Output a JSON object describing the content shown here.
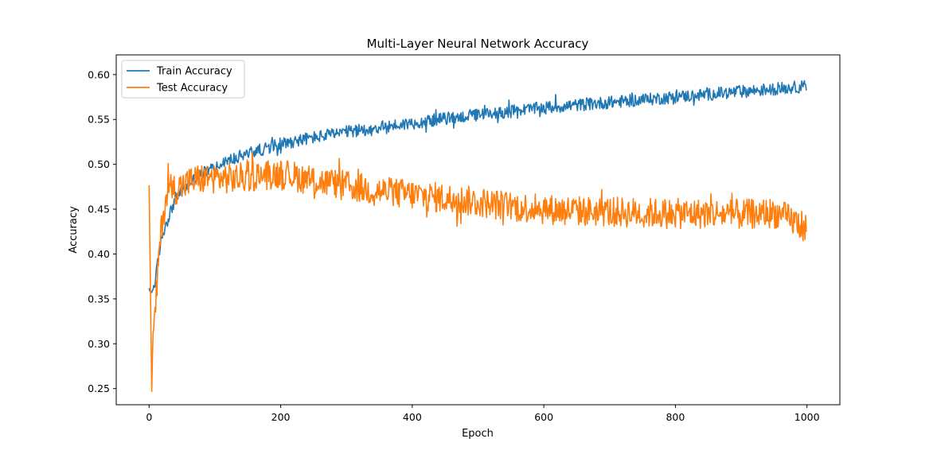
{
  "chart_data": {
    "type": "line",
    "title": "Multi-Layer Neural Network Accuracy",
    "xlabel": "Epoch",
    "ylabel": "Accuracy",
    "xlim": [
      -50,
      1050
    ],
    "ylim": [
      0.232,
      0.622
    ],
    "x_ticks": [
      0,
      200,
      400,
      600,
      800,
      1000
    ],
    "y_ticks": [
      0.25,
      0.3,
      0.35,
      0.4,
      0.45,
      0.5,
      0.55,
      0.6
    ],
    "legend_position": "top-left",
    "grid": false,
    "x_range": [
      0,
      999
    ],
    "series": [
      {
        "name": "Train Accuracy",
        "color": "#1f77b4",
        "points": [
          [
            0,
            0.362
          ],
          [
            3,
            0.355
          ],
          [
            6,
            0.362
          ],
          [
            10,
            0.372
          ],
          [
            13,
            0.39
          ],
          [
            16,
            0.405
          ],
          [
            20,
            0.42
          ],
          [
            25,
            0.432
          ],
          [
            30,
            0.442
          ],
          [
            35,
            0.452
          ],
          [
            40,
            0.462
          ],
          [
            50,
            0.47
          ],
          [
            60,
            0.478
          ],
          [
            70,
            0.484
          ],
          [
            80,
            0.49
          ],
          [
            100,
            0.497
          ],
          [
            120,
            0.504
          ],
          [
            150,
            0.512
          ],
          [
            200,
            0.523
          ],
          [
            250,
            0.53
          ],
          [
            300,
            0.536
          ],
          [
            350,
            0.541
          ],
          [
            400,
            0.546
          ],
          [
            450,
            0.551
          ],
          [
            500,
            0.555
          ],
          [
            550,
            0.559
          ],
          [
            600,
            0.563
          ],
          [
            650,
            0.566
          ],
          [
            700,
            0.569
          ],
          [
            750,
            0.572
          ],
          [
            800,
            0.575
          ],
          [
            850,
            0.578
          ],
          [
            900,
            0.581
          ],
          [
            950,
            0.584
          ],
          [
            999,
            0.587
          ]
        ],
        "noise_amplitude": 0.007
      },
      {
        "name": "Test Accuracy",
        "color": "#ff7f0e",
        "points": [
          [
            0,
            0.477
          ],
          [
            2,
            0.36
          ],
          [
            4,
            0.251
          ],
          [
            6,
            0.31
          ],
          [
            9,
            0.33
          ],
          [
            12,
            0.365
          ],
          [
            16,
            0.41
          ],
          [
            20,
            0.435
          ],
          [
            25,
            0.46
          ],
          [
            30,
            0.478
          ],
          [
            40,
            0.472
          ],
          [
            50,
            0.476
          ],
          [
            70,
            0.483
          ],
          [
            100,
            0.485
          ],
          [
            130,
            0.484
          ],
          [
            170,
            0.488
          ],
          [
            200,
            0.49
          ],
          [
            250,
            0.482
          ],
          [
            300,
            0.476
          ],
          [
            350,
            0.47
          ],
          [
            400,
            0.466
          ],
          [
            450,
            0.462
          ],
          [
            500,
            0.458
          ],
          [
            550,
            0.453
          ],
          [
            600,
            0.45
          ],
          [
            650,
            0.448
          ],
          [
            700,
            0.447
          ],
          [
            750,
            0.446
          ],
          [
            800,
            0.445
          ],
          [
            850,
            0.445
          ],
          [
            900,
            0.444
          ],
          [
            950,
            0.446
          ],
          [
            970,
            0.44
          ],
          [
            999,
            0.43
          ]
        ],
        "noise_amplitude": 0.017
      }
    ]
  }
}
